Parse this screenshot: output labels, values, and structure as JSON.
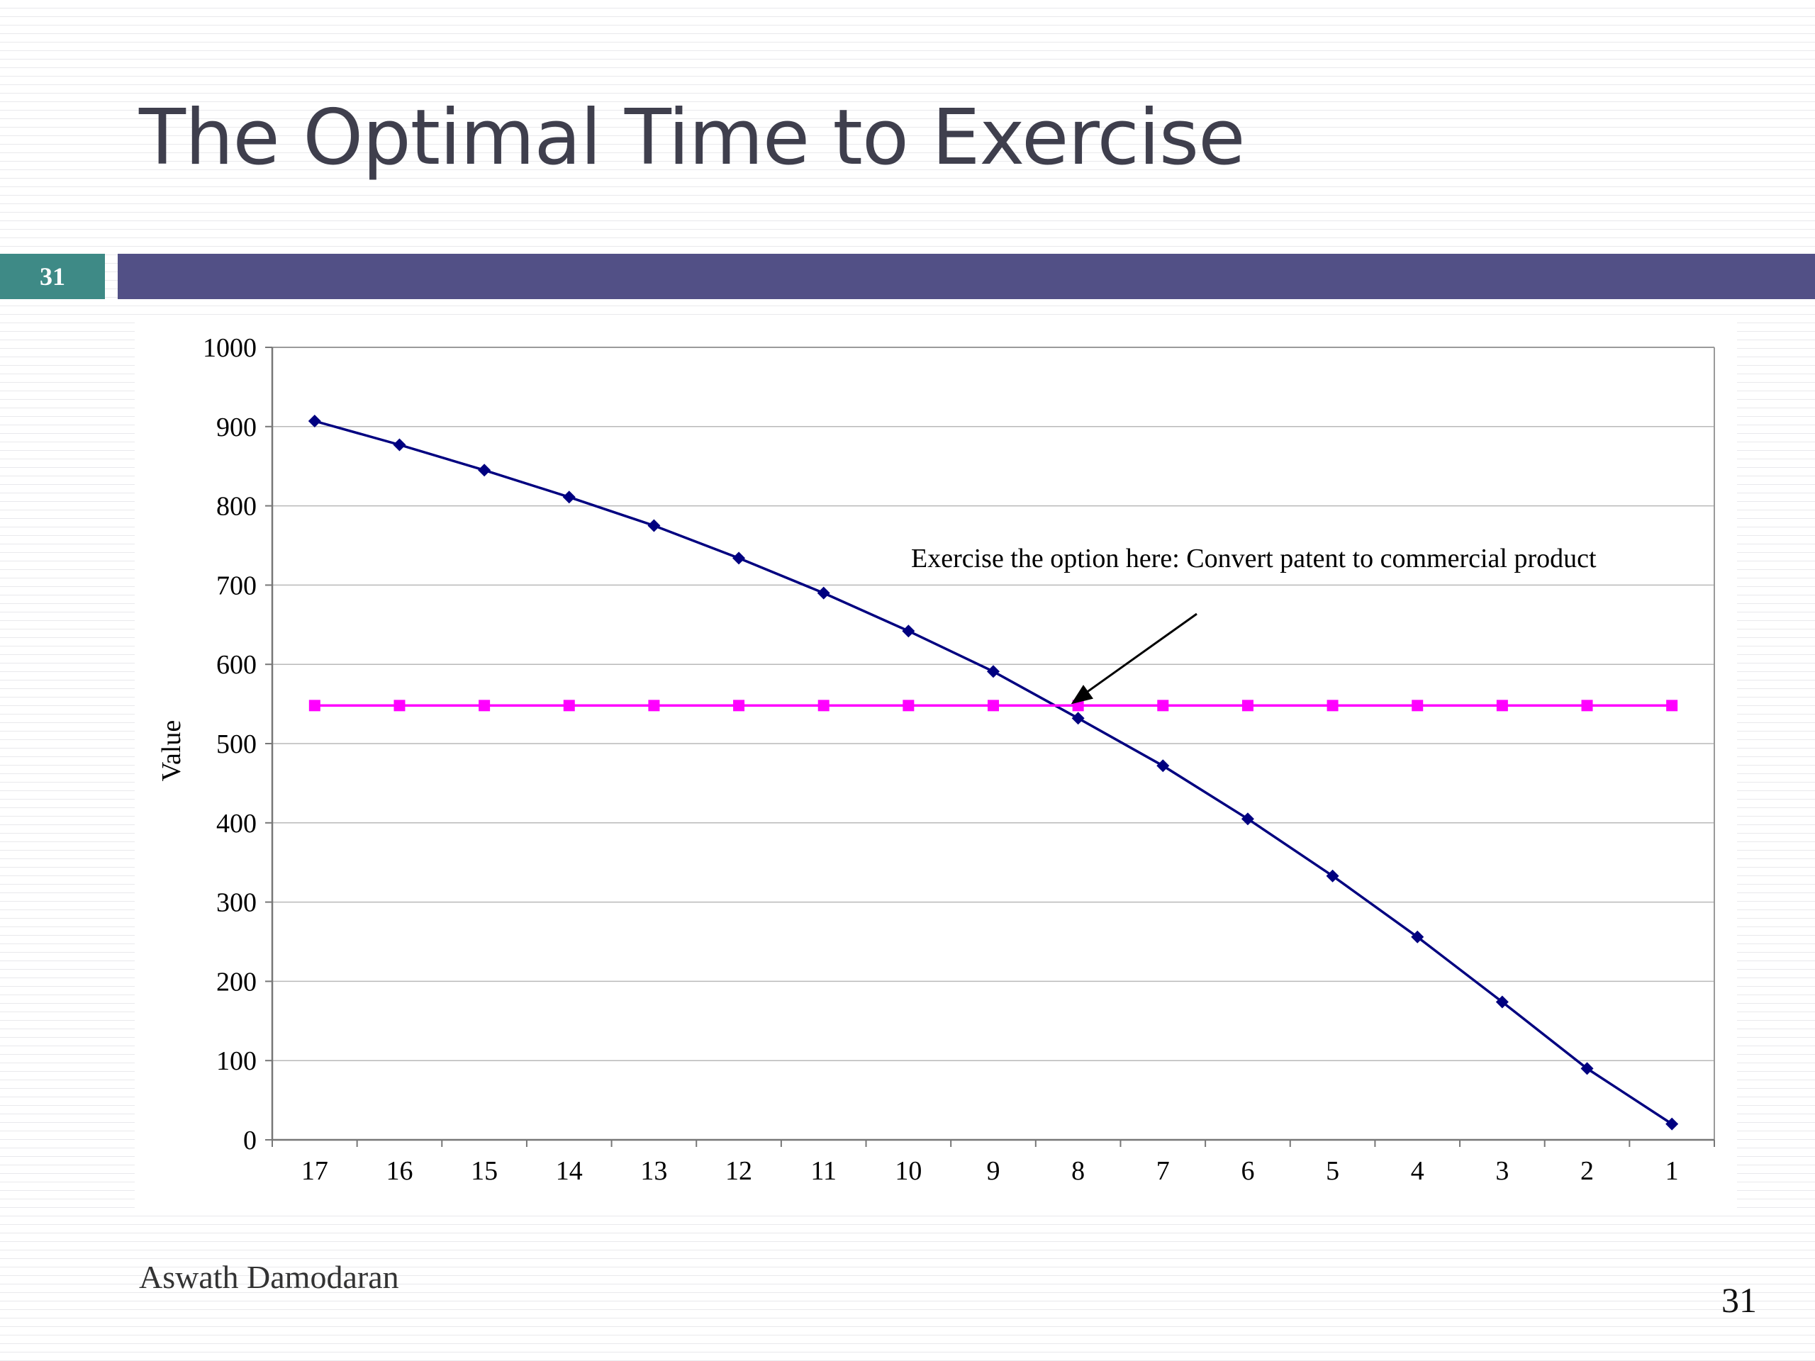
{
  "slide": {
    "title": "The Optimal Time to Exercise",
    "slide_number_badge": "31",
    "author": "Aswath Damodaran",
    "page_number": "31",
    "colors": {
      "title_bar": "#525086",
      "badge": "#3e8a86",
      "title_text": "#3f3f4d"
    }
  },
  "chart_data": {
    "type": "line",
    "title": "",
    "xlabel": "",
    "ylabel": "Value",
    "x": [
      17,
      16,
      15,
      14,
      13,
      12,
      11,
      10,
      9,
      8,
      7,
      6,
      5,
      4,
      3,
      2,
      1
    ],
    "ylim": [
      0,
      1000
    ],
    "yticks": [
      0,
      100,
      200,
      300,
      400,
      500,
      600,
      700,
      800,
      900,
      1000
    ],
    "grid": true,
    "series": [
      {
        "name": "",
        "color": "#000080",
        "marker": "diamond",
        "values": [
          907,
          877,
          845,
          811,
          775,
          734,
          690,
          642,
          591,
          532,
          472,
          405,
          333,
          256,
          174,
          90,
          20
        ]
      },
      {
        "name": "",
        "color": "#ff00ff",
        "marker": "square",
        "values": [
          548,
          548,
          548,
          548,
          548,
          548,
          548,
          548,
          548,
          548,
          548,
          548,
          548,
          548,
          548,
          548,
          548
        ]
      }
    ],
    "annotation": {
      "text": "Exercise the option here: Convert patent to commercial product",
      "points_to_x": 8
    }
  }
}
